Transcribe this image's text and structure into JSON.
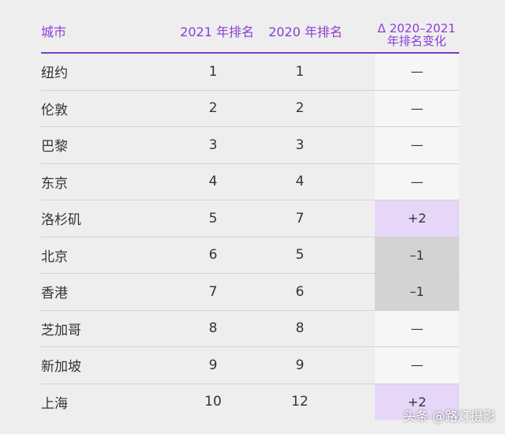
{
  "header": {
    "city": "城市",
    "rank2021": "2021 年排名",
    "rank2020": "2020 年排名",
    "change_line1": "Δ 2020–2021",
    "change_line2": "年排名变化"
  },
  "rows": [
    {
      "city": "纽约",
      "rank2021": "1",
      "rank2020": "1",
      "change": "—",
      "change_bg": "#f6f6f6"
    },
    {
      "city": "伦敦",
      "rank2021": "2",
      "rank2020": "2",
      "change": "—",
      "change_bg": "#f6f6f6"
    },
    {
      "city": "巴黎",
      "rank2021": "3",
      "rank2020": "3",
      "change": "—",
      "change_bg": "#f6f6f6"
    },
    {
      "city": "东京",
      "rank2021": "4",
      "rank2020": "4",
      "change": "—",
      "change_bg": "#f6f6f6"
    },
    {
      "city": "洛杉矶",
      "rank2021": "5",
      "rank2020": "7",
      "change": "+2",
      "change_bg": "#e6d6f8"
    },
    {
      "city": "北京",
      "rank2021": "6",
      "rank2020": "5",
      "change": "–1",
      "change_bg": "#d3d3d3"
    },
    {
      "city": "香港",
      "rank2021": "7",
      "rank2020": "6",
      "change": "–1",
      "change_bg": "#d3d3d3"
    },
    {
      "city": "芝加哥",
      "rank2021": "8",
      "rank2020": "8",
      "change": "—",
      "change_bg": "#f6f6f6"
    },
    {
      "city": "新加坡",
      "rank2021": "9",
      "rank2020": "9",
      "change": "—",
      "change_bg": "#f6f6f6"
    },
    {
      "city": "上海",
      "rank2021": "10",
      "rank2020": "12",
      "change": "+2",
      "change_bg": "#e6d6f8"
    }
  ],
  "watermark": "头条 @路灯摄影",
  "colors": {
    "accent": "#8a3ed6",
    "background": "#eeeeee"
  }
}
